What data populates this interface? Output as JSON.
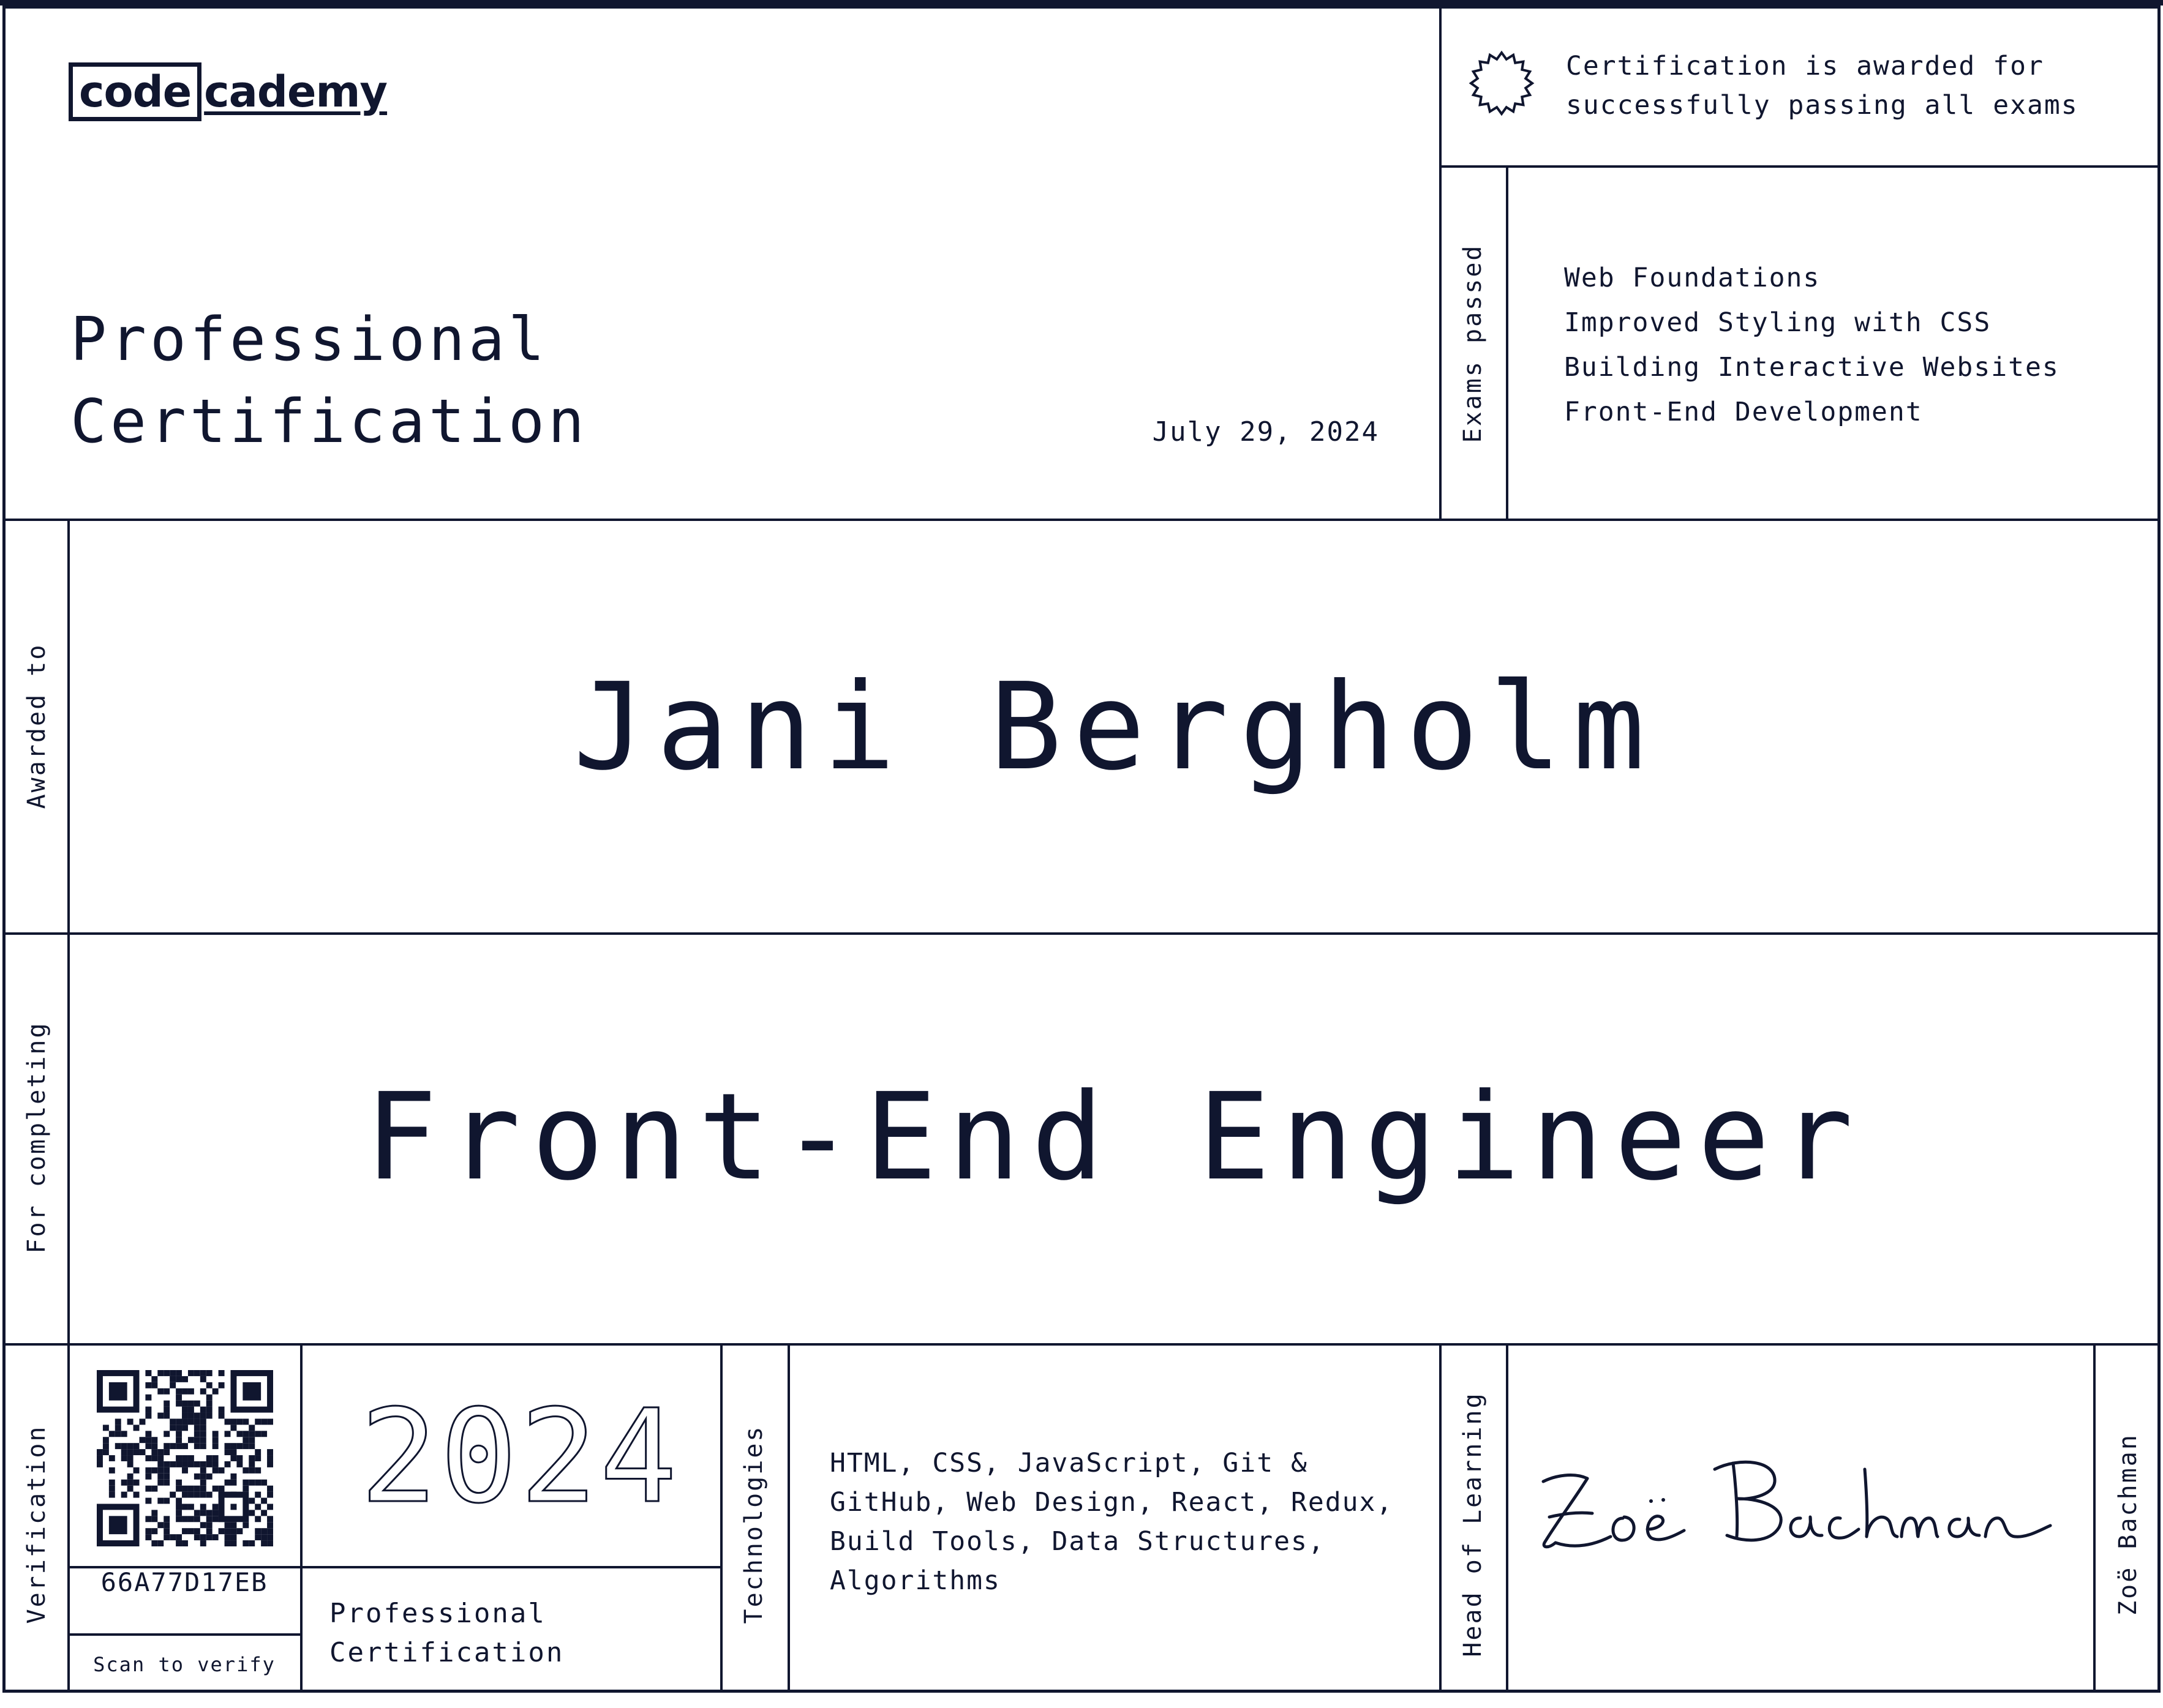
{
  "brand": {
    "logo_box": "code",
    "logo_rest": "cademy"
  },
  "header": {
    "title_line1": "Professional",
    "title_line2": "Certification",
    "date": "July 29, 2024"
  },
  "award_note": {
    "line1": "Certification is awarded for",
    "line2": "successfully passing all exams"
  },
  "exams": {
    "label": "Exams passed",
    "items": [
      "Web Foundations",
      "Improved Styling with CSS",
      "Building Interactive Websites",
      "Front-End Development"
    ]
  },
  "recipient": {
    "label": "Awarded to",
    "name": "Jani Bergholm"
  },
  "course": {
    "label": "For completing",
    "name": "Front-End Engineer"
  },
  "verification": {
    "label": "Verification",
    "code": "66A77D17EB",
    "scan_text": "Scan to verify"
  },
  "year": {
    "value": "2024",
    "label_line1": "Professional",
    "label_line2": "Certification"
  },
  "technologies": {
    "label": "Technologies",
    "lines": [
      "HTML, CSS, JavaScript, Git &",
      "GitHub, Web Design, React, Redux,",
      "Build Tools, Data Structures,",
      "Algorithms"
    ]
  },
  "signatory": {
    "label": "Head of Learning",
    "name": "Zoë Bachman",
    "signature": "Zoë Bachman"
  },
  "colors": {
    "ink": "#10162f",
    "paper": "#ffffff"
  }
}
